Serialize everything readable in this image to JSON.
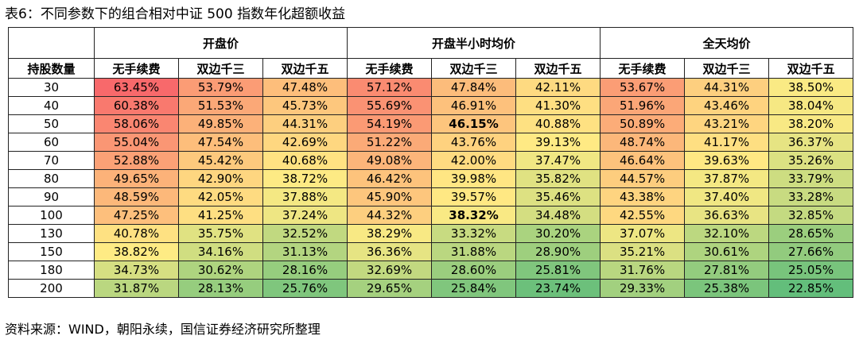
{
  "title": "表6：不同参数下的组合相对中证 500 指数年化超额收益",
  "source": "资料来源：WIND，朝阳永续，国信证券经济研究所整理",
  "table": {
    "groups": [
      "开盘价",
      "开盘半小时均价",
      "全天均价"
    ],
    "row_header": "持股数量",
    "sub_headers": [
      "无手续费",
      "双边千三",
      "双边千五",
      "无手续费",
      "双边千三",
      "双边千五",
      "无手续费",
      "双边千三",
      "双边千五"
    ],
    "rows": [
      {
        "label": "30",
        "values": [
          "63.45%",
          "53.79%",
          "47.48%",
          "57.12%",
          "47.84%",
          "42.11%",
          "53.67%",
          "44.31%",
          "38.50%"
        ]
      },
      {
        "label": "40",
        "values": [
          "60.38%",
          "51.53%",
          "45.73%",
          "55.69%",
          "46.91%",
          "41.30%",
          "51.96%",
          "43.46%",
          "38.04%"
        ]
      },
      {
        "label": "50",
        "values": [
          "58.06%",
          "49.85%",
          "44.31%",
          "54.19%",
          "46.15%",
          "40.88%",
          "50.89%",
          "43.21%",
          "38.20%"
        ]
      },
      {
        "label": "60",
        "values": [
          "55.04%",
          "47.54%",
          "42.69%",
          "51.22%",
          "43.76%",
          "39.13%",
          "48.74%",
          "41.17%",
          "36.37%"
        ]
      },
      {
        "label": "70",
        "values": [
          "52.88%",
          "45.42%",
          "40.68%",
          "49.08%",
          "42.00%",
          "37.47%",
          "46.64%",
          "39.63%",
          "35.26%"
        ]
      },
      {
        "label": "80",
        "values": [
          "49.65%",
          "42.90%",
          "38.72%",
          "46.42%",
          "39.98%",
          "35.82%",
          "44.57%",
          "37.87%",
          "33.79%"
        ]
      },
      {
        "label": "90",
        "values": [
          "48.59%",
          "42.05%",
          "37.88%",
          "45.90%",
          "39.57%",
          "35.46%",
          "43.38%",
          "37.40%",
          "33.28%"
        ]
      },
      {
        "label": "100",
        "values": [
          "47.25%",
          "41.25%",
          "37.24%",
          "44.32%",
          "38.32%",
          "34.48%",
          "42.55%",
          "36.63%",
          "32.85%"
        ]
      },
      {
        "label": "130",
        "values": [
          "40.78%",
          "35.75%",
          "32.52%",
          "38.29%",
          "33.32%",
          "30.20%",
          "37.07%",
          "32.10%",
          "28.65%"
        ]
      },
      {
        "label": "150",
        "values": [
          "38.82%",
          "34.16%",
          "31.13%",
          "36.36%",
          "31.88%",
          "28.90%",
          "35.21%",
          "30.61%",
          "27.66%"
        ]
      },
      {
        "label": "180",
        "values": [
          "34.73%",
          "30.62%",
          "28.16%",
          "32.69%",
          "28.60%",
          "25.81%",
          "31.76%",
          "27.81%",
          "25.05%"
        ]
      },
      {
        "label": "200",
        "values": [
          "31.87%",
          "28.13%",
          "25.76%",
          "29.65%",
          "25.84%",
          "23.74%",
          "29.33%",
          "25.38%",
          "22.85%"
        ]
      }
    ],
    "bold_cells": [
      [
        2,
        4
      ],
      [
        7,
        4
      ]
    ],
    "heatmap_colors": {
      "high": "#f8696b",
      "mid": "#ffeb84",
      "low": "#63be7b"
    }
  }
}
